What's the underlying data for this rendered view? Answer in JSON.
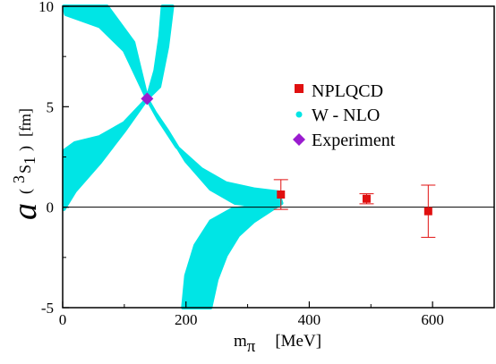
{
  "colors": {
    "nplqcd": "#e01010",
    "wnlo": "#00e5e5",
    "experiment": "#9a1ccf",
    "axis": "#000000",
    "background": "#ffffff"
  },
  "chart_data": {
    "type": "scatter",
    "xlim": [
      0,
      700
    ],
    "ylim": [
      -5,
      10
    ],
    "grid": false,
    "legend_position": "top-right",
    "xlabel": {
      "main": "m",
      "subscript": "π",
      "unit": "[MeV]"
    },
    "ylabel": {
      "symbol": "a",
      "paren_open": "(",
      "superscript": "3",
      "state": "S",
      "state_subscript": "1",
      "paren_close": ")",
      "unit": "[fm]"
    },
    "x_ticks": [
      {
        "value": 0,
        "label": "0"
      },
      {
        "value": 200,
        "label": "200"
      },
      {
        "value": 400,
        "label": "400"
      },
      {
        "value": 600,
        "label": "600"
      }
    ],
    "y_ticks": [
      {
        "value": -5,
        "label": "-5"
      },
      {
        "value": 0,
        "label": "0"
      },
      {
        "value": 5,
        "label": "5"
      },
      {
        "value": 10,
        "label": "10"
      }
    ],
    "zero_line": 0,
    "series": [
      {
        "name": "NPLQCD",
        "kind": "points_with_errorbars",
        "marker": "square",
        "points": [
          {
            "x": 354,
            "y": 0.63,
            "err": 0.74
          },
          {
            "x": 493,
            "y": 0.42,
            "err": 0.25
          },
          {
            "x": 593,
            "y": -0.2,
            "err": 1.3
          }
        ]
      },
      {
        "name": "W - NLO",
        "kind": "band",
        "marker": "circle",
        "regions": [
          {
            "label": "upper-left",
            "polygon": [
              [
                2,
                10
              ],
              [
                72,
                10
              ],
              [
                115,
                8.2
              ],
              [
                137,
                5.4
              ],
              [
                100,
                7.8
              ],
              [
                60,
                9.0
              ],
              [
                5,
                9.6
              ]
            ]
          },
          {
            "label": "upper-right",
            "polygon": [
              [
                137,
                5.4
              ],
              [
                150,
                6.8
              ],
              [
                158,
                8.5
              ],
              [
                162,
                10
              ],
              [
                178,
                10
              ],
              [
                170,
                8.0
              ],
              [
                157,
                6.0
              ]
            ]
          },
          {
            "label": "left-wing",
            "polygon": [
              [
                137,
                5.4
              ],
              [
                100,
                4.2
              ],
              [
                60,
                3.5
              ],
              [
                20,
                3.2
              ],
              [
                2,
                2.8
              ],
              [
                2,
                -0.1
              ],
              [
                20,
                0.8
              ],
              [
                60,
                2.2
              ],
              [
                100,
                3.8
              ]
            ]
          },
          {
            "label": "right-wing",
            "polygon": [
              [
                137,
                5.4
              ],
              [
                155,
                4.4
              ],
              [
                185,
                3.0
              ],
              [
                225,
                1.9
              ],
              [
                265,
                1.2
              ],
              [
                310,
                0.9
              ],
              [
                350,
                0.75
              ],
              [
                355,
                0.2
              ],
              [
                320,
                0.1
              ],
              [
                280,
                0.2
              ],
              [
                240,
                0.9
              ],
              [
                200,
                2.3
              ],
              [
                170,
                3.8
              ],
              [
                150,
                4.7
              ]
            ]
          },
          {
            "label": "lower-branch",
            "polygon": [
              [
                355,
                0.2
              ],
              [
                335,
                -0.2
              ],
              [
                310,
                -0.7
              ],
              [
                285,
                -1.4
              ],
              [
                265,
                -2.4
              ],
              [
                250,
                -3.6
              ],
              [
                240,
                -5
              ],
              [
                195,
                -5
              ],
              [
                200,
                -3.4
              ],
              [
                215,
                -1.9
              ],
              [
                240,
                -0.7
              ],
              [
                275,
                -0.1
              ],
              [
                310,
                0.05
              ]
            ]
          }
        ]
      },
      {
        "name": "Experiment",
        "kind": "point",
        "marker": "diamond",
        "points": [
          {
            "x": 137,
            "y": 5.4
          }
        ]
      }
    ],
    "legend": [
      {
        "label": "NPLQCD",
        "marker": "square"
      },
      {
        "label": "W - NLO",
        "marker": "circle"
      },
      {
        "label": "Experiment",
        "marker": "diamond"
      }
    ]
  }
}
